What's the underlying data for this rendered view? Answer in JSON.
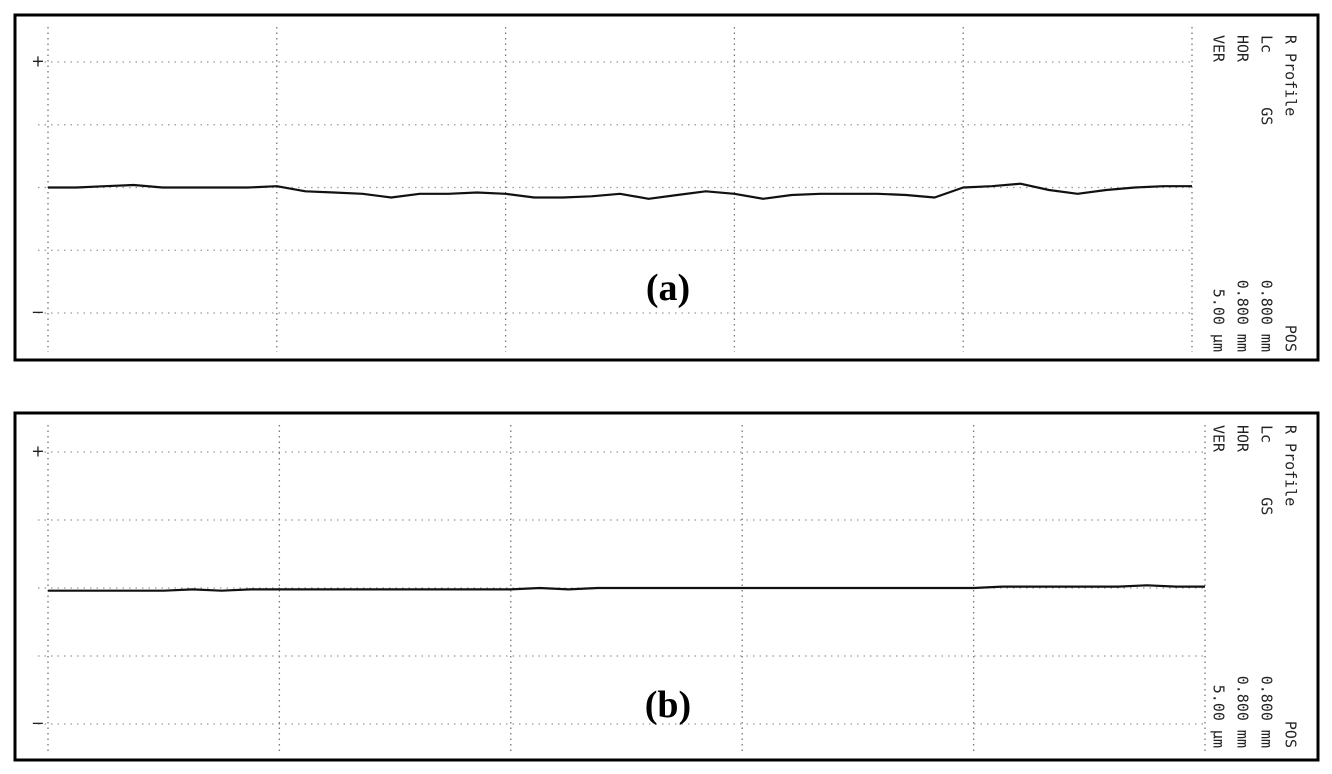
{
  "chart_data": [
    {
      "type": "line",
      "title": "(a)",
      "x": [
        0,
        0.1,
        0.2,
        0.3,
        0.4,
        0.5,
        0.6,
        0.7,
        0.8,
        0.9,
        1.0,
        1.1,
        1.2,
        1.3,
        1.4,
        1.5,
        1.6,
        1.7,
        1.8,
        1.9,
        2.0,
        2.1,
        2.2,
        2.3,
        2.4,
        2.5,
        2.6,
        2.7,
        2.8,
        2.9,
        3.0,
        3.1,
        3.2,
        3.3,
        3.4,
        3.5,
        3.6,
        3.7,
        3.8,
        3.9,
        4.0
      ],
      "values": [
        0.0,
        0.0,
        0.1,
        0.2,
        0.0,
        0.0,
        0.0,
        0.0,
        0.1,
        -0.3,
        -0.4,
        -0.5,
        -0.8,
        -0.5,
        -0.5,
        -0.4,
        -0.5,
        -0.8,
        -0.8,
        -0.7,
        -0.5,
        -0.9,
        -0.6,
        -0.3,
        -0.5,
        -0.9,
        -0.6,
        -0.5,
        -0.5,
        -0.5,
        -0.6,
        -0.8,
        0.0,
        0.1,
        0.3,
        -0.2,
        -0.5,
        -0.2,
        0.0,
        0.1,
        0.1
      ],
      "color": "#111111",
      "xlim": [
        0,
        4
      ],
      "xticks": [
        0,
        0.8,
        1.6,
        2.4,
        3.2,
        4.0
      ],
      "ylim": [
        -10,
        10
      ],
      "yticks": [
        -10,
        -5,
        0,
        5,
        10
      ],
      "grid": true,
      "top_label": "+",
      "bottom_label": "−",
      "annotations": [
        {
          "text": "R Profile",
          "value": "POS"
        },
        {
          "text": "Lc      GS",
          "value": "0.800 mm"
        },
        {
          "text": "HOR",
          "value": "0.800 mm"
        },
        {
          "text": "VER",
          "value": "5.00 µm"
        }
      ]
    },
    {
      "type": "line",
      "title": "(b)",
      "x": [
        0,
        0.1,
        0.2,
        0.3,
        0.4,
        0.5,
        0.6,
        0.7,
        0.8,
        0.9,
        1.0,
        1.1,
        1.2,
        1.3,
        1.4,
        1.5,
        1.6,
        1.7,
        1.8,
        1.9,
        2.0,
        2.1,
        2.2,
        2.3,
        2.4,
        2.5,
        2.6,
        2.7,
        2.8,
        2.9,
        3.0,
        3.1,
        3.2,
        3.3,
        3.4,
        3.5,
        3.6,
        3.7,
        3.8,
        3.9,
        4.0
      ],
      "values": [
        -0.2,
        -0.2,
        -0.2,
        -0.2,
        -0.2,
        -0.1,
        -0.2,
        -0.1,
        -0.1,
        -0.1,
        -0.1,
        -0.1,
        -0.1,
        -0.1,
        -0.1,
        -0.1,
        -0.1,
        0.0,
        -0.1,
        0.0,
        0.0,
        0.0,
        0.0,
        0.0,
        0.0,
        0.0,
        0.0,
        0.0,
        0.0,
        0.0,
        0.0,
        0.0,
        0.0,
        0.1,
        0.1,
        0.1,
        0.1,
        0.1,
        0.2,
        0.1,
        0.1
      ],
      "color": "#111111",
      "xlim": [
        0,
        4
      ],
      "xticks": [
        0,
        0.8,
        1.6,
        2.4,
        3.2,
        4.0
      ],
      "ylim": [
        -10,
        10
      ],
      "yticks": [
        -10,
        -5,
        0,
        5,
        10
      ],
      "grid": true,
      "top_label": "+",
      "bottom_label": "−",
      "annotations": [
        {
          "text": "R Profile",
          "value": "POS"
        },
        {
          "text": "Lc      GS",
          "value": "0.800 mm"
        },
        {
          "text": "HOR",
          "value": "0.800 mm"
        },
        {
          "text": "VER",
          "value": "5.00 µm"
        }
      ]
    }
  ]
}
